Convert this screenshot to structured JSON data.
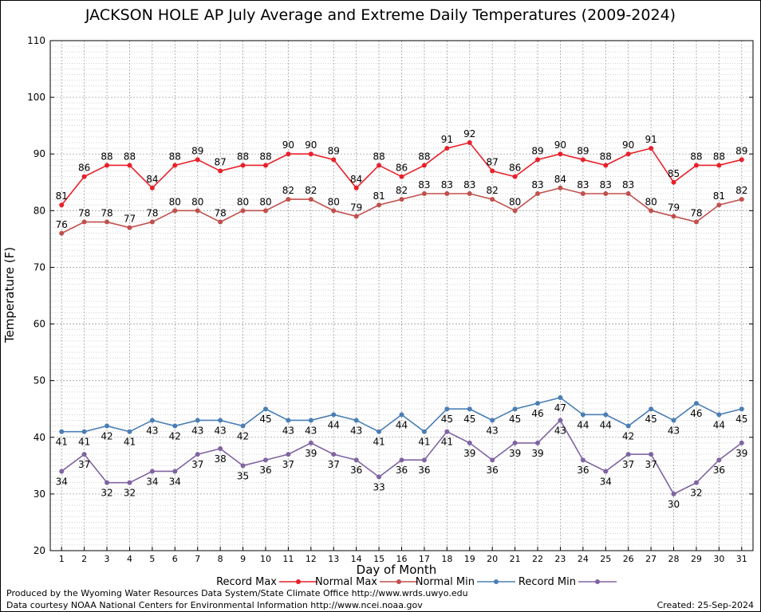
{
  "chart_data": {
    "type": "line",
    "title": "JACKSON HOLE AP July Average and Extreme Daily Temperatures (2009-2024)",
    "xlabel": "Day of Month",
    "ylabel": "Temperature (F)",
    "ylim": [
      20,
      110
    ],
    "xlim": [
      1,
      31
    ],
    "yticks": [
      20,
      30,
      40,
      50,
      60,
      70,
      80,
      90,
      100,
      110
    ],
    "x": [
      1,
      2,
      3,
      4,
      5,
      6,
      7,
      8,
      9,
      10,
      11,
      12,
      13,
      14,
      15,
      16,
      17,
      18,
      19,
      20,
      21,
      22,
      23,
      24,
      25,
      26,
      27,
      28,
      29,
      30,
      31
    ],
    "grid": true,
    "legend_position": "bottom",
    "series": [
      {
        "name": "Record Max",
        "color": "#e8202a",
        "label_pos": "above",
        "values": [
          81,
          86,
          88,
          88,
          84,
          88,
          89,
          87,
          88,
          88,
          90,
          90,
          89,
          84,
          88,
          86,
          88,
          91,
          92,
          87,
          86,
          89,
          90,
          89,
          88,
          90,
          91,
          85,
          88,
          88,
          89
        ]
      },
      {
        "name": "Normal Max",
        "color": "#c0504d",
        "label_pos": "above",
        "values": [
          76,
          78,
          78,
          77,
          78,
          80,
          80,
          78,
          80,
          80,
          82,
          82,
          80,
          79,
          81,
          82,
          83,
          83,
          83,
          82,
          80,
          83,
          84,
          83,
          83,
          83,
          80,
          79,
          78,
          81,
          82
        ]
      },
      {
        "name": "Normal Min",
        "color": "#4a7eb5",
        "label_pos": "below",
        "values": [
          41,
          41,
          42,
          41,
          43,
          42,
          43,
          43,
          42,
          45,
          43,
          43,
          44,
          43,
          41,
          44,
          41,
          45,
          45,
          43,
          45,
          46,
          47,
          44,
          44,
          42,
          45,
          43,
          46,
          44,
          45
        ]
      },
      {
        "name": "Record Min",
        "color": "#8064a2",
        "label_pos": "below",
        "values": [
          34,
          37,
          32,
          32,
          34,
          34,
          37,
          38,
          35,
          36,
          37,
          39,
          37,
          36,
          33,
          36,
          36,
          41,
          39,
          36,
          39,
          39,
          43,
          36,
          34,
          37,
          37,
          30,
          32,
          36,
          39
        ]
      }
    ]
  },
  "footer": {
    "produced_by": "Produced by the Wyoming Water Resources Data System/State Climate Office http://www.wrds.uwyo.edu",
    "courtesy": "Data courtesy NOAA National Centers for Environmental Information http://www.ncei.noaa.gov",
    "created": "Created:  25-Sep-2024"
  }
}
